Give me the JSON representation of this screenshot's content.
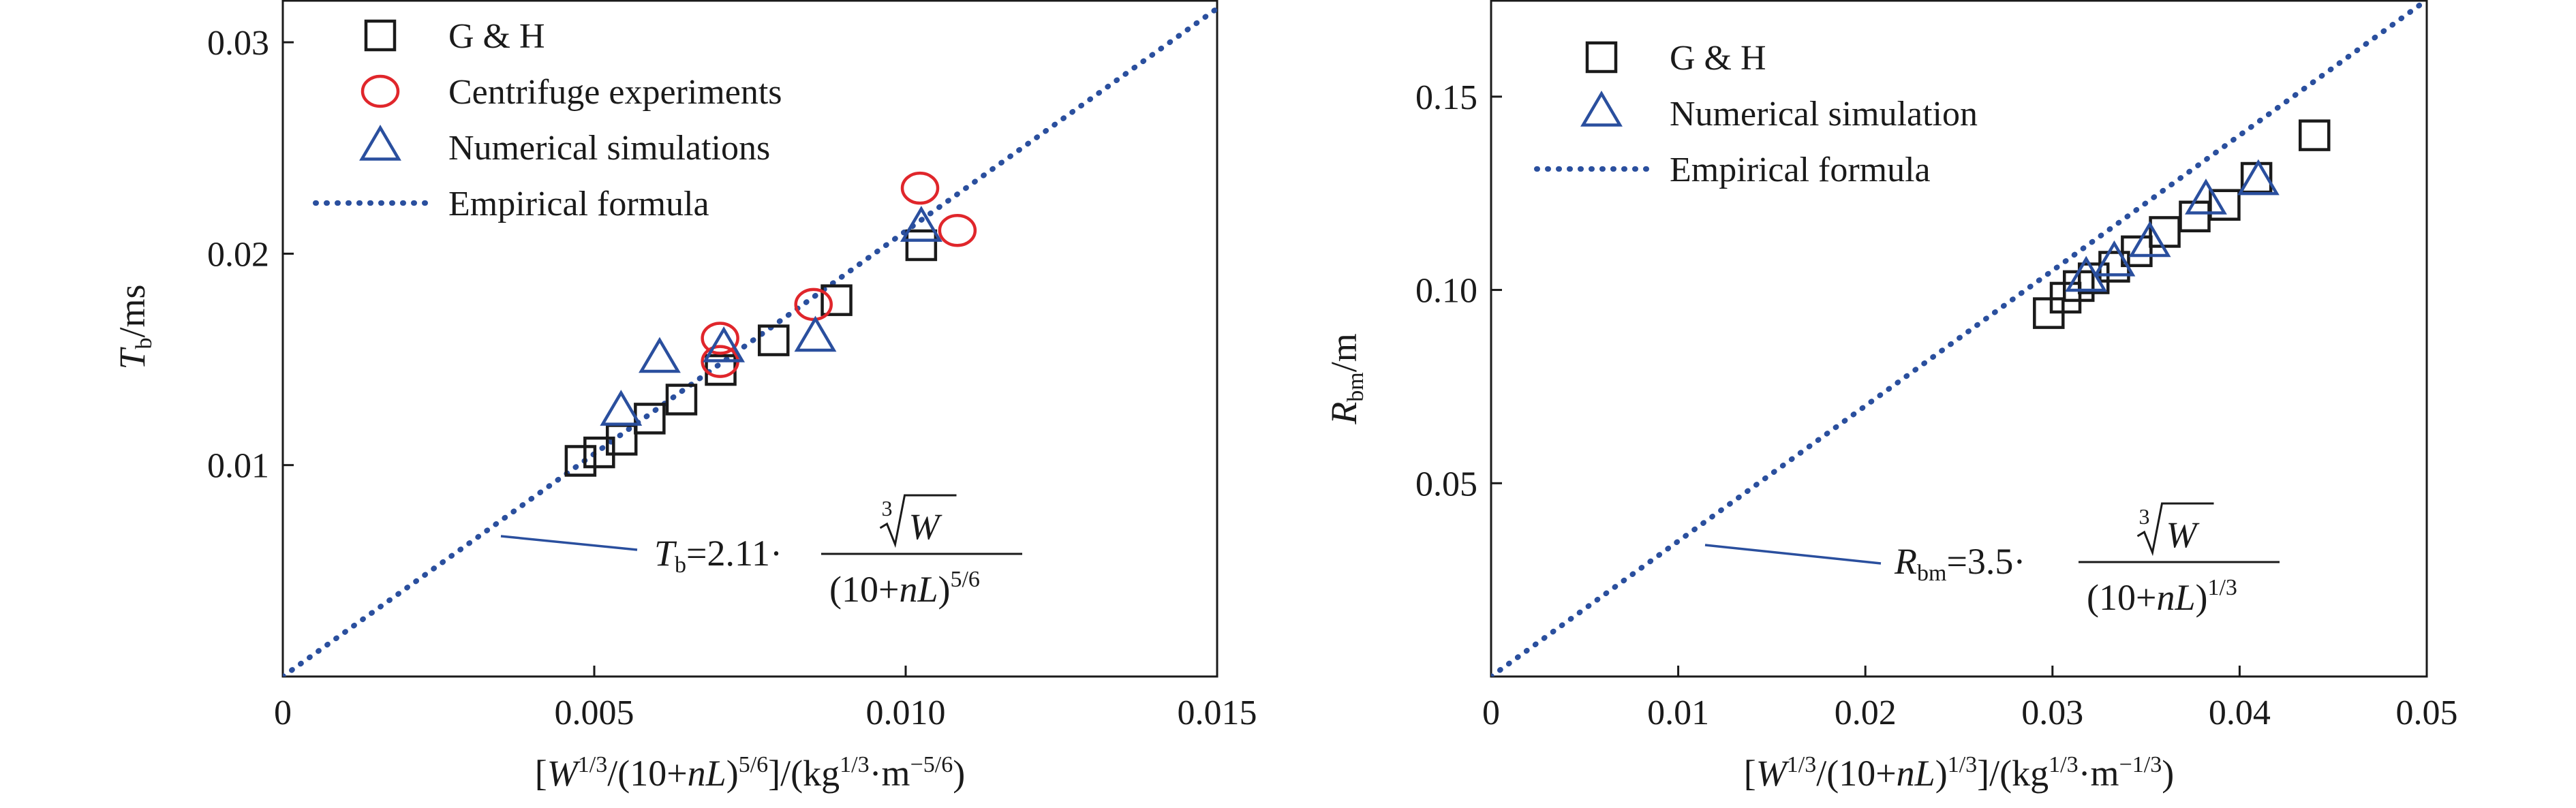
{
  "chart_data": [
    {
      "type": "scatter",
      "xlim": [
        0,
        0.015
      ],
      "ylim": [
        0,
        0.032
      ],
      "x_ticks": [
        {
          "value": 0,
          "label": "0"
        },
        {
          "value": 0.005,
          "label": "0.005"
        },
        {
          "value": 0.01,
          "label": "0.010"
        },
        {
          "value": 0.015,
          "label": "0.015"
        }
      ],
      "y_ticks": [
        {
          "value": 0.01,
          "label": "0.01"
        },
        {
          "value": 0.02,
          "label": "0.02"
        },
        {
          "value": 0.03,
          "label": "0.03"
        }
      ],
      "xlabel": {
        "pre": "[",
        "W": "W",
        "p1": "1/3",
        "mid": "/(10+",
        "nL": "nL",
        "mid2": ")",
        "p2": "5/6",
        "unit": "]/(kg",
        "p3": "1/3",
        "dot": "·m",
        "p4": "−5/6",
        "end": ")"
      },
      "ylabel": {
        "sym": "T",
        "sub": "b",
        "unit": "/ms"
      },
      "legend": {
        "position": "top-left",
        "entries": [
          {
            "label": "G & H",
            "marker": "square",
            "color": "#1a1a1a"
          },
          {
            "label": "Centrifuge experiments",
            "marker": "circle",
            "color": "#e0262b"
          },
          {
            "label": "Numerical simulations",
            "marker": "triangle",
            "color": "#2a4f9e"
          },
          {
            "label": "Empirical formula",
            "marker": "dotted-line",
            "color": "#2a4f9e"
          }
        ]
      },
      "formula": {
        "sym": "T",
        "sub": "b",
        "coef": "=2.11·",
        "num": "W",
        "root": "3",
        "den_a": "(10+",
        "den_nL": "nL",
        "den_b": ")",
        "den_exp": "5/6"
      },
      "series": [
        {
          "name": "G & H",
          "marker": "square",
          "color": "#1a1a1a",
          "x": [
            0.00478,
            0.00508,
            0.00544,
            0.00589,
            0.0064,
            0.00703,
            0.00788,
            0.00889,
            0.01025
          ],
          "y": [
            0.0102,
            0.0106,
            0.0112,
            0.0122,
            0.0131,
            0.0145,
            0.0159,
            0.0178,
            0.0204
          ]
        },
        {
          "name": "Centrifuge experiments",
          "marker": "circle",
          "color": "#e0262b",
          "x": [
            0.00702,
            0.00702,
            0.00852,
            0.01023,
            0.01083
          ],
          "y": [
            0.016,
            0.0149,
            0.0176,
            0.0231,
            0.0211
          ]
        },
        {
          "name": "Numerical simulations",
          "marker": "triangle",
          "color": "#2a4f9e",
          "x": [
            0.00543,
            0.00605,
            0.00708,
            0.00855,
            0.01025
          ],
          "y": [
            0.0125,
            0.015,
            0.0155,
            0.016,
            0.0212
          ]
        },
        {
          "name": "Empirical formula",
          "type": "line",
          "color": "#2a4f9e",
          "x": [
            0,
            0.015
          ],
          "y": [
            0,
            0.0316
          ]
        }
      ]
    },
    {
      "type": "scatter",
      "xlim": [
        0,
        0.05
      ],
      "ylim": [
        0,
        0.175
      ],
      "x_ticks": [
        {
          "value": 0,
          "label": "0"
        },
        {
          "value": 0.01,
          "label": "0.01"
        },
        {
          "value": 0.02,
          "label": "0.02"
        },
        {
          "value": 0.03,
          "label": "0.03"
        },
        {
          "value": 0.04,
          "label": "0.04"
        },
        {
          "value": 0.05,
          "label": "0.05"
        }
      ],
      "y_ticks": [
        {
          "value": 0.05,
          "label": "0.05"
        },
        {
          "value": 0.1,
          "label": "0.10"
        },
        {
          "value": 0.15,
          "label": "0.15"
        }
      ],
      "xlabel": {
        "pre": "[",
        "W": "W",
        "p1": "1/3",
        "mid": "/(10+",
        "nL": "nL",
        "mid2": ")",
        "p2": "1/3",
        "unit": "]/(kg",
        "p3": "1/3",
        "dot": "·m",
        "p4": "−1/3",
        "end": ")"
      },
      "ylabel": {
        "sym": "R",
        "sub": "bm",
        "unit": "/m"
      },
      "legend": {
        "position": "top-left",
        "entries": [
          {
            "label": "G & H",
            "marker": "square",
            "color": "#1a1a1a"
          },
          {
            "label": "Numerical simulation",
            "marker": "triangle",
            "color": "#2a4f9e"
          },
          {
            "label": "Empirical formula",
            "marker": "dotted-line",
            "color": "#2a4f9e"
          }
        ]
      },
      "formula": {
        "sym": "R",
        "sub": "bm",
        "coef": "=3.5·",
        "num": "W",
        "root": "3",
        "den_a": "(10+",
        "den_nL": "nL",
        "den_b": ")",
        "den_exp": "1/3"
      },
      "series": [
        {
          "name": "G & H",
          "marker": "square",
          "color": "#1a1a1a",
          "x": [
            0.0298,
            0.0307,
            0.0314,
            0.0322,
            0.0333,
            0.0345,
            0.036,
            0.0376,
            0.0392,
            0.0409,
            0.044
          ],
          "y": [
            0.094,
            0.098,
            0.101,
            0.103,
            0.106,
            0.11,
            0.115,
            0.119,
            0.122,
            0.129,
            0.14
          ]
        },
        {
          "name": "Numerical simulation",
          "marker": "triangle",
          "color": "#2a4f9e",
          "x": [
            0.0318,
            0.0333,
            0.0352,
            0.0382,
            0.041
          ],
          "y": [
            0.103,
            0.107,
            0.112,
            0.123,
            0.128
          ]
        },
        {
          "name": "Empirical formula",
          "type": "line",
          "color": "#2a4f9e",
          "x": [
            0,
            0.05
          ],
          "y": [
            0,
            0.175
          ]
        }
      ]
    }
  ]
}
